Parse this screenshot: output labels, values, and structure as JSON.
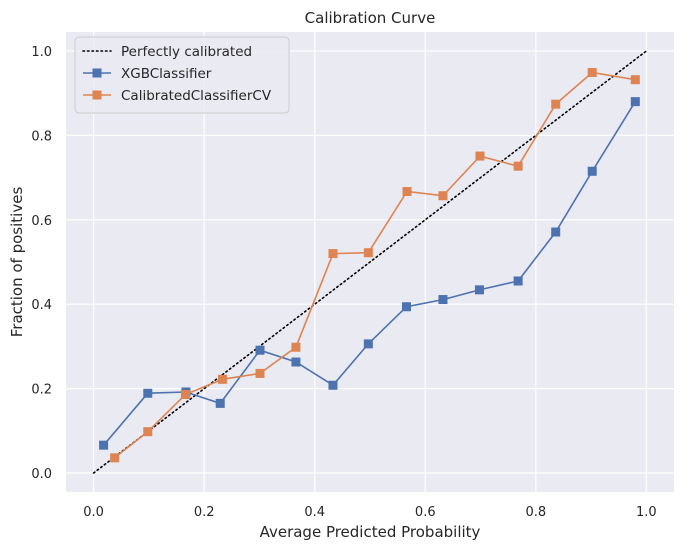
{
  "chart_data": {
    "type": "line",
    "title": "Calibration Curve",
    "xlabel": "Average Predicted Probability",
    "ylabel": "Fraction of positives",
    "xlim": [
      -0.05,
      1.05
    ],
    "ylim": [
      -0.045,
      1.045
    ],
    "xticks": [
      "0.0",
      "0.2",
      "0.4",
      "0.6",
      "0.8",
      "1.0"
    ],
    "yticks": [
      "0.0",
      "0.2",
      "0.4",
      "0.6",
      "0.8",
      "1.0"
    ],
    "grid": true,
    "background": "#EAEAF2",
    "legend": "top-left",
    "reference_line": {
      "name": "Perfectly calibrated",
      "x": [
        0,
        1
      ],
      "y": [
        0,
        1
      ],
      "color": "#000000",
      "style": "dotted"
    },
    "series": [
      {
        "name": "XGBClassifier",
        "color": "#4C72B0",
        "marker": "square",
        "x": [
          0.018,
          0.098,
          0.167,
          0.229,
          0.301,
          0.366,
          0.433,
          0.497,
          0.566,
          0.632,
          0.698,
          0.768,
          0.836,
          0.902,
          0.98
        ],
        "y": [
          0.066,
          0.189,
          0.192,
          0.165,
          0.291,
          0.263,
          0.208,
          0.306,
          0.394,
          0.411,
          0.434,
          0.455,
          0.571,
          0.715,
          0.88
        ]
      },
      {
        "name": "CalibratedClassifierCV",
        "color": "#DD8452",
        "marker": "square",
        "x": [
          0.038,
          0.098,
          0.166,
          0.233,
          0.301,
          0.366,
          0.433,
          0.497,
          0.567,
          0.632,
          0.699,
          0.768,
          0.836,
          0.902,
          0.98
        ],
        "y": [
          0.036,
          0.098,
          0.186,
          0.222,
          0.236,
          0.298,
          0.52,
          0.522,
          0.667,
          0.657,
          0.751,
          0.727,
          0.874,
          0.949,
          0.932
        ]
      }
    ]
  }
}
